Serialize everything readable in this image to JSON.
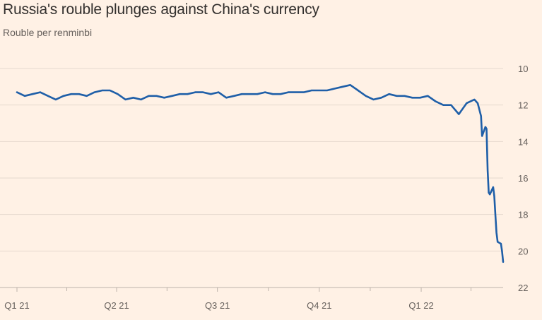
{
  "chart_data": {
    "type": "line",
    "title": "Russia's rouble plunges against China's currency",
    "subtitle": "Rouble per renminbi",
    "xlabel": "",
    "ylabel": "",
    "y_inverted": true,
    "ylim": [
      10,
      22
    ],
    "y_ticks": [
      "10",
      "12",
      "14",
      "16",
      "18",
      "20",
      "22"
    ],
    "x_range": [
      "2021-01-01",
      "2022-03-16"
    ],
    "x_ticks": [
      {
        "label": "Q1 21",
        "date": "2021-01-01"
      },
      {
        "label": "Q2 21",
        "date": "2021-04-01"
      },
      {
        "label": "Q3 21",
        "date": "2021-07-01"
      },
      {
        "label": "Q4 21",
        "date": "2021-10-01"
      },
      {
        "label": "Q1 22",
        "date": "2022-01-01"
      }
    ],
    "grid": true,
    "line_color": "#1f5fa8",
    "series": [
      {
        "name": "",
        "x": [
          "2021-01-01",
          "2021-01-08",
          "2021-01-15",
          "2021-01-22",
          "2021-01-29",
          "2021-02-05",
          "2021-02-12",
          "2021-02-19",
          "2021-02-26",
          "2021-03-05",
          "2021-03-12",
          "2021-03-19",
          "2021-03-26",
          "2021-04-02",
          "2021-04-09",
          "2021-04-16",
          "2021-04-23",
          "2021-04-30",
          "2021-05-07",
          "2021-05-14",
          "2021-05-21",
          "2021-05-28",
          "2021-06-04",
          "2021-06-11",
          "2021-06-18",
          "2021-06-25",
          "2021-07-02",
          "2021-07-09",
          "2021-07-16",
          "2021-07-23",
          "2021-07-30",
          "2021-08-06",
          "2021-08-13",
          "2021-08-20",
          "2021-08-27",
          "2021-09-03",
          "2021-09-10",
          "2021-09-17",
          "2021-09-24",
          "2021-10-01",
          "2021-10-08",
          "2021-10-15",
          "2021-10-22",
          "2021-10-29",
          "2021-11-05",
          "2021-11-12",
          "2021-11-19",
          "2021-11-26",
          "2021-12-03",
          "2021-12-10",
          "2021-12-17",
          "2021-12-24",
          "2021-12-31",
          "2022-01-07",
          "2022-01-14",
          "2022-01-21",
          "2022-01-28",
          "2022-02-04",
          "2022-02-11",
          "2022-02-18",
          "2022-02-21",
          "2022-02-24",
          "2022-02-25",
          "2022-02-28",
          "2022-03-01",
          "2022-03-02",
          "2022-03-03",
          "2022-03-04",
          "2022-03-07",
          "2022-03-08",
          "2022-03-09",
          "2022-03-10",
          "2022-03-11",
          "2022-03-14",
          "2022-03-15",
          "2022-03-16"
        ],
        "values": [
          11.3,
          11.5,
          11.4,
          11.3,
          11.5,
          11.7,
          11.5,
          11.4,
          11.4,
          11.5,
          11.3,
          11.2,
          11.2,
          11.4,
          11.7,
          11.6,
          11.7,
          11.5,
          11.5,
          11.6,
          11.5,
          11.4,
          11.4,
          11.3,
          11.3,
          11.4,
          11.3,
          11.6,
          11.5,
          11.4,
          11.4,
          11.4,
          11.3,
          11.4,
          11.4,
          11.3,
          11.3,
          11.3,
          11.2,
          11.2,
          11.2,
          11.1,
          11.0,
          10.9,
          11.2,
          11.5,
          11.7,
          11.6,
          11.4,
          11.5,
          11.5,
          11.6,
          11.6,
          11.5,
          11.8,
          12.0,
          12.0,
          12.5,
          11.9,
          11.7,
          11.9,
          12.6,
          13.7,
          13.2,
          13.3,
          15.6,
          16.8,
          16.9,
          16.5,
          17.0,
          18.0,
          19.0,
          19.5,
          19.6,
          20.0,
          20.6
        ]
      }
    ]
  }
}
